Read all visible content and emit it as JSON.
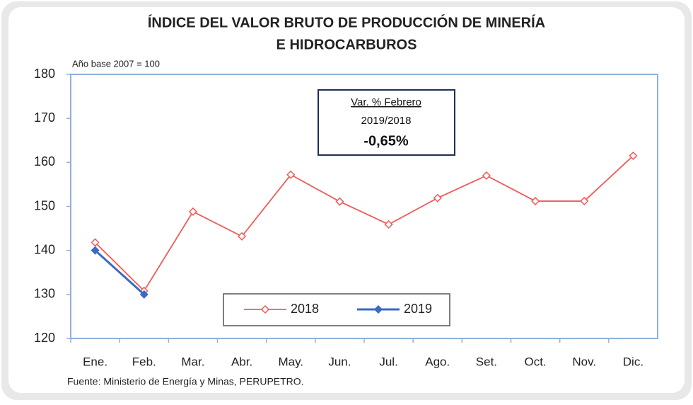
{
  "chart_data": {
    "type": "line",
    "title": [
      "ÍNDICE DEL VALOR BRUTO DE PRODUCCIÓN DE MINERÍA",
      "E HIDROCARBUROS"
    ],
    "subtitle": "Año base  2007  =  100",
    "annotation": [
      "Var. % Febrero",
      "2019/2018",
      "-0,65%"
    ],
    "source": "Fuente: Ministerio de Energía y Minas, PERUPETRO.",
    "categories": [
      "Ene.",
      "Feb.",
      "Mar.",
      "Abr.",
      "May.",
      "Jun.",
      "Jul.",
      "Ago.",
      "Set.",
      "Oct.",
      "Nov.",
      "Dic."
    ],
    "series": [
      {
        "name": "2018",
        "color": "#f05a5a",
        "values": [
          141.8,
          130.8,
          148.8,
          143.2,
          157.2,
          151.1,
          145.9,
          151.9,
          157.0,
          151.2,
          151.2,
          161.5
        ]
      },
      {
        "name": "2019",
        "color": "#3a6bc4",
        "values": [
          140.0,
          130.0,
          null,
          null,
          null,
          null,
          null,
          null,
          null,
          null,
          null,
          null
        ]
      }
    ],
    "ylim": [
      120,
      180
    ],
    "yticks": [
      120,
      130,
      140,
      150,
      160,
      170,
      180
    ]
  }
}
